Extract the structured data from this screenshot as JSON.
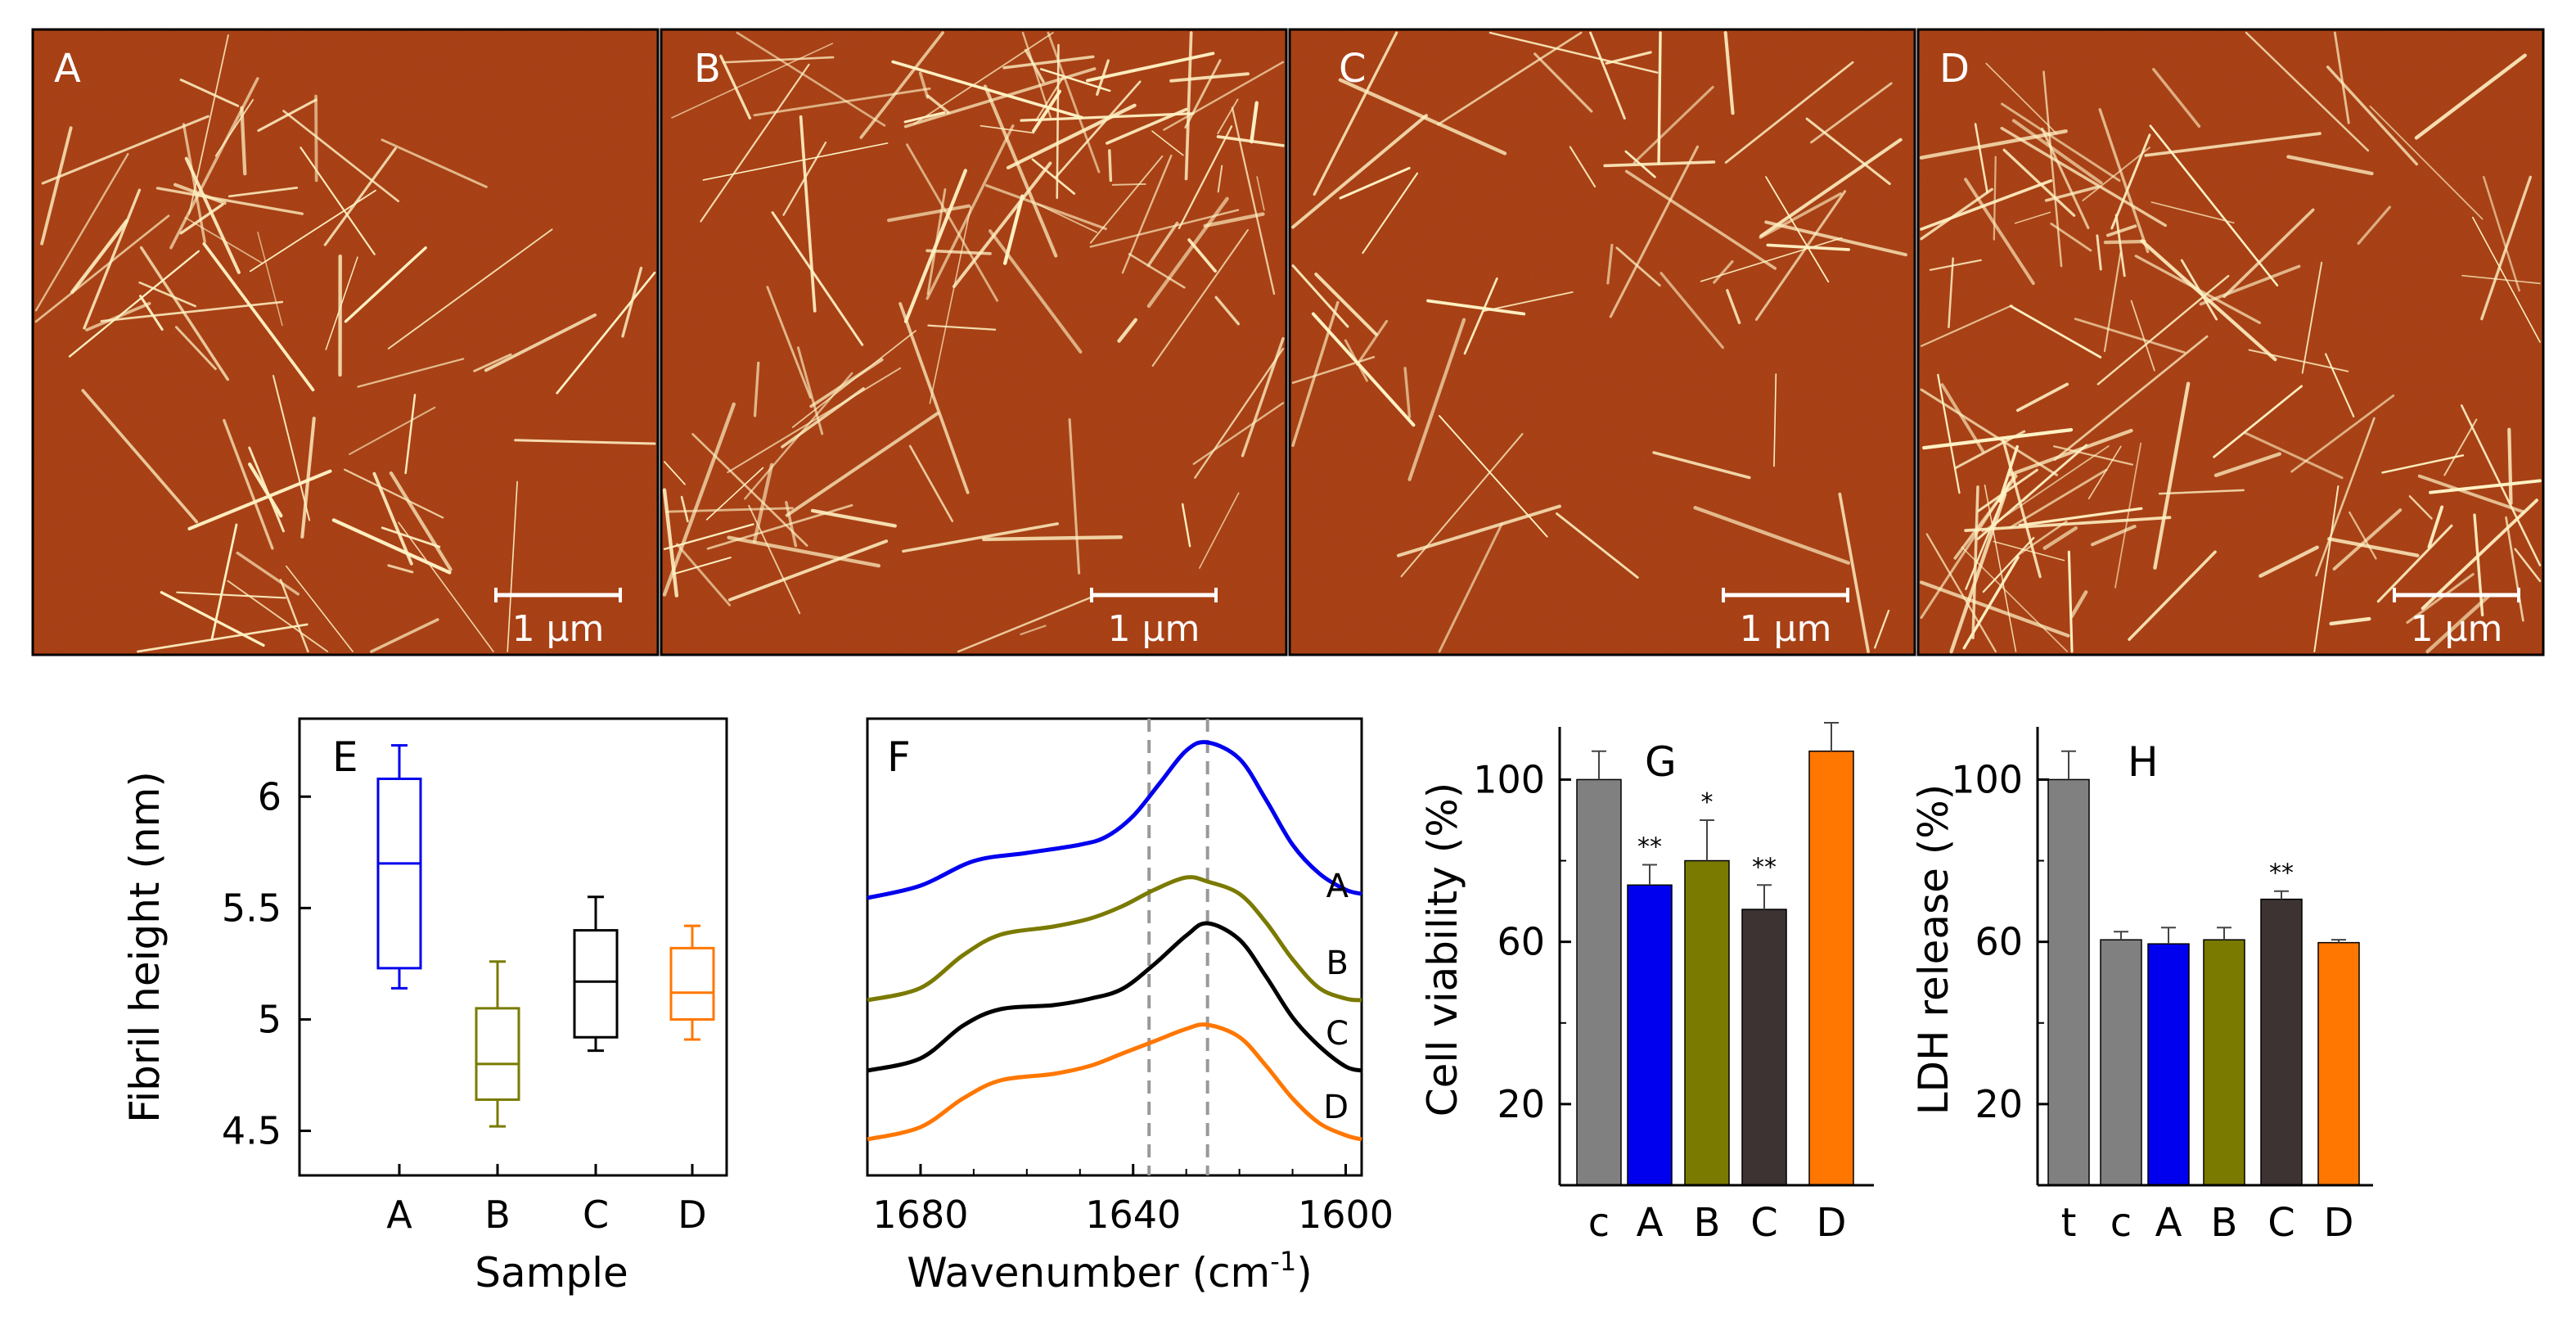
{
  "afm_panels": [
    {
      "label": "A",
      "scale_bar": "1 μm"
    },
    {
      "label": "B",
      "scale_bar": "1 μm"
    },
    {
      "label": "C",
      "scale_bar": "1 μm"
    },
    {
      "label": "D",
      "scale_bar": "1 μm"
    }
  ],
  "colors": {
    "A": "#0000ee",
    "B": "#7a7a00",
    "C": "#000000",
    "C_bar": "#3d3333",
    "D": "#ff7700",
    "control": "#808080",
    "afm_background": "#a53a12",
    "fibril": "#fff2c4"
  },
  "chart_data": [
    {
      "panel": "E",
      "type": "box",
      "xlabel": "Sample",
      "ylabel": "Fibril height (nm)",
      "categories": [
        "A",
        "B",
        "C",
        "D"
      ],
      "yticks": [
        "4.5",
        "5",
        "5.5",
        "6"
      ],
      "ylim": [
        4.3,
        6.35
      ],
      "boxes": [
        {
          "category": "A",
          "min": 5.14,
          "q1": 5.23,
          "median": 5.7,
          "q3": 6.08,
          "max": 6.23
        },
        {
          "category": "B",
          "min": 4.52,
          "q1": 4.64,
          "median": 4.8,
          "q3": 5.05,
          "max": 5.26
        },
        {
          "category": "C",
          "min": 4.86,
          "q1": 4.92,
          "median": 5.17,
          "q3": 5.4,
          "max": 5.55
        },
        {
          "category": "D",
          "min": 4.91,
          "q1": 5.0,
          "median": 5.12,
          "q3": 5.32,
          "max": 5.42
        }
      ]
    },
    {
      "panel": "F",
      "type": "line",
      "xlabel": "Wavenumber (cm-1)",
      "xlabel_main": "Wavenumber (cm",
      "xlabel_sup": "-1",
      "xlabel_end": ")",
      "xticks": [
        "1680",
        "1640",
        "1600"
      ],
      "xlim": [
        1690,
        1597
      ],
      "reference_lines": [
        1637,
        1626
      ],
      "series": [
        {
          "name": "A",
          "x": [
            1690,
            1680,
            1670,
            1660,
            1650,
            1645,
            1640,
            1635,
            1630,
            1626,
            1620,
            1615,
            1610,
            1605,
            1600,
            1597
          ],
          "y": [
            0.45,
            0.6,
            0.9,
            1.0,
            1.1,
            1.2,
            1.45,
            1.85,
            2.25,
            2.35,
            2.15,
            1.65,
            1.1,
            0.75,
            0.55,
            0.5
          ]
        },
        {
          "name": "B",
          "x": [
            1690,
            1680,
            1672,
            1665,
            1655,
            1648,
            1642,
            1636,
            1630,
            1626,
            1620,
            1615,
            1610,
            1605,
            1600,
            1597
          ],
          "y": [
            0.0,
            0.15,
            0.55,
            0.8,
            0.9,
            1.0,
            1.15,
            1.35,
            1.5,
            1.45,
            1.3,
            0.95,
            0.5,
            0.15,
            0.02,
            0.0
          ]
        },
        {
          "name": "C",
          "x": [
            1690,
            1680,
            1672,
            1665,
            1655,
            1648,
            1642,
            1636,
            1630,
            1626,
            1620,
            1615,
            1610,
            1605,
            1600,
            1597
          ],
          "y": [
            0.0,
            0.15,
            0.55,
            0.75,
            0.8,
            0.88,
            1.0,
            1.3,
            1.65,
            1.8,
            1.6,
            1.15,
            0.65,
            0.3,
            0.05,
            0.0
          ]
        },
        {
          "name": "D",
          "x": [
            1690,
            1680,
            1672,
            1665,
            1655,
            1648,
            1642,
            1636,
            1630,
            1626,
            1620,
            1615,
            1610,
            1605,
            1600,
            1597
          ],
          "y": [
            0.0,
            0.15,
            0.5,
            0.72,
            0.8,
            0.9,
            1.05,
            1.2,
            1.35,
            1.4,
            1.25,
            0.9,
            0.5,
            0.2,
            0.05,
            0.0
          ]
        }
      ]
    },
    {
      "panel": "G",
      "type": "bar",
      "ylabel": "Cell viability (%)",
      "categories": [
        "c",
        "A",
        "B",
        "C",
        "D"
      ],
      "values": [
        100,
        74,
        80,
        68,
        107
      ],
      "errors": [
        7,
        5,
        10,
        6,
        7
      ],
      "significance": [
        "",
        "**",
        "*",
        "**",
        ""
      ],
      "yticks": [
        "20",
        "60",
        "100"
      ],
      "ylim": [
        0,
        113
      ]
    },
    {
      "panel": "H",
      "type": "bar",
      "ylabel": "LDH release (%)",
      "categories": [
        "t",
        "c",
        "A",
        "B",
        "C",
        "D"
      ],
      "values": [
        100,
        60.5,
        59.5,
        60.5,
        70.5,
        59.8
      ],
      "errors": [
        7,
        2,
        4,
        3,
        2,
        0.7
      ],
      "significance": [
        "",
        "",
        "",
        "",
        "**",
        ""
      ],
      "yticks": [
        "20",
        "60",
        "100"
      ],
      "ylim": [
        0,
        113
      ]
    }
  ]
}
